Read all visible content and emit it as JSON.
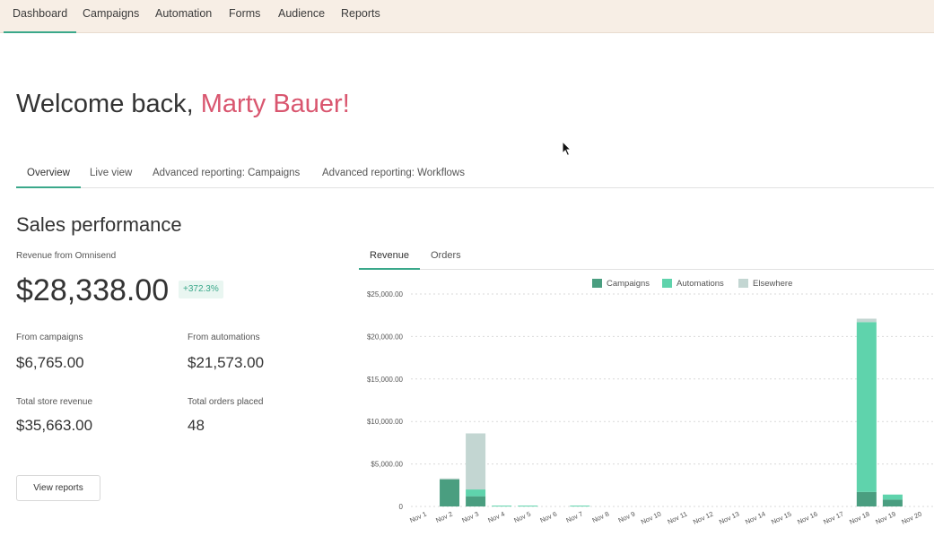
{
  "nav": {
    "items": [
      {
        "label": "Dashboard",
        "active": true
      },
      {
        "label": "Campaigns"
      },
      {
        "label": "Automation"
      },
      {
        "label": "Forms"
      },
      {
        "label": "Audience"
      },
      {
        "label": "Reports"
      }
    ]
  },
  "welcome": {
    "prefix": "Welcome back, ",
    "name": "Marty Bauer!"
  },
  "subtabs": [
    {
      "label": "Overview",
      "active": true
    },
    {
      "label": "Live view"
    },
    {
      "label": "Advanced reporting: Campaigns"
    },
    {
      "label": "Advanced reporting: Workflows"
    }
  ],
  "sales": {
    "title": "Sales performance",
    "revenue_label": "Revenue from Omnisend",
    "revenue_value": "$28,338.00",
    "revenue_change": "+372.3%",
    "from_campaigns_label": "From campaigns",
    "from_campaigns_value": "$6,765.00",
    "from_automations_label": "From automations",
    "from_automations_value": "$21,573.00",
    "total_store_label": "Total store revenue",
    "total_store_value": "$35,663.00",
    "total_orders_label": "Total orders placed",
    "total_orders_value": "48",
    "view_reports_label": "View reports"
  },
  "chart_tabs": [
    {
      "label": "Revenue",
      "active": true
    },
    {
      "label": "Orders"
    }
  ],
  "colors": {
    "campaigns": "#4a9e80",
    "automations": "#5fd3ac",
    "elsewhere": "#c3d6d2",
    "accent": "#3aa88a",
    "name": "#d9566f"
  },
  "chart_data": {
    "type": "bar",
    "stacked": true,
    "categories": [
      "Nov 1",
      "Nov 2",
      "Nov 3",
      "Nov 4",
      "Nov 5",
      "Nov 6",
      "Nov 7",
      "Nov 8",
      "Nov 9",
      "Nov 10",
      "Nov 11",
      "Nov 12",
      "Nov 13",
      "Nov 14",
      "Nov 15",
      "Nov 16",
      "Nov 17",
      "Nov 18",
      "Nov 19",
      "Nov 20"
    ],
    "series": [
      {
        "name": "Campaigns",
        "values": [
          0,
          3200,
          1200,
          0,
          0,
          0,
          0,
          0,
          0,
          0,
          0,
          0,
          0,
          0,
          0,
          0,
          0,
          1700,
          800,
          0
        ]
      },
      {
        "name": "Automations",
        "values": [
          0,
          0,
          800,
          100,
          100,
          0,
          100,
          0,
          0,
          0,
          0,
          0,
          0,
          0,
          0,
          0,
          0,
          20000,
          600,
          0
        ]
      },
      {
        "name": "Elsewhere",
        "values": [
          0,
          100,
          6600,
          0,
          0,
          0,
          0,
          0,
          0,
          0,
          0,
          0,
          0,
          0,
          0,
          0,
          0,
          400,
          0,
          0
        ]
      }
    ],
    "y_ticks": [
      "0",
      "$5,000.00",
      "$10,000.00",
      "$15,000.00",
      "$20,000.00",
      "$25,000.00"
    ],
    "ylim": [
      0,
      25000
    ],
    "grid": true,
    "legend_position": "top-center"
  }
}
